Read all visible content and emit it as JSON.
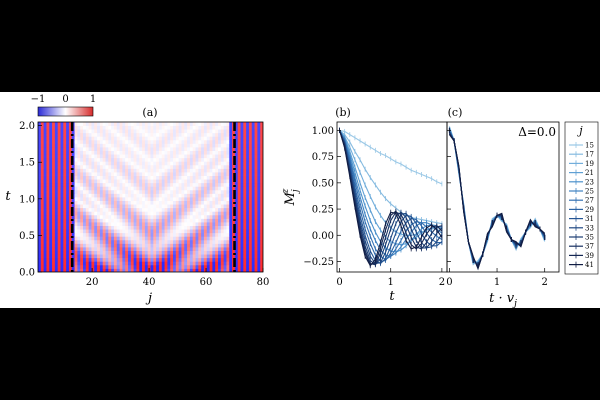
{
  "chart_data": [
    {
      "panel_label": "(a)",
      "type": "heatmap",
      "xlabel": "j",
      "ylabel": "t",
      "xlim": [
        1,
        80
      ],
      "ylim": [
        0,
        2.05
      ],
      "xticks": [
        "20",
        "40",
        "60",
        "80"
      ],
      "yticks": [
        "0.0",
        "0.5",
        "1.0",
        "1.5",
        "2.0"
      ],
      "colorbar": {
        "min": -1,
        "max": 1,
        "ticks": [
          "−1",
          "0",
          "1"
        ],
        "colors": [
          "#2b2bd6",
          "#ffffff",
          "#d62b2b"
        ]
      },
      "vertical_lines_j": [
        13,
        70
      ],
      "grid": false
    },
    {
      "panel_label": "(b)",
      "type": "line",
      "xlabel": "t",
      "ylabel": "M_j^z",
      "xlim": [
        -0.05,
        2.1
      ],
      "ylim": [
        -0.35,
        1.08
      ],
      "xticks": [
        "0",
        "1",
        "2"
      ],
      "yticks": [
        "−0.25",
        "0.00",
        "0.25",
        "0.50",
        "0.75",
        "1.00"
      ],
      "series_j": [
        15,
        17,
        19,
        21,
        23,
        25,
        27,
        29,
        31,
        33,
        35,
        37,
        39,
        41
      ],
      "x": [
        0,
        0.1,
        0.2,
        0.3,
        0.4,
        0.5,
        0.6,
        0.7,
        0.8,
        0.9,
        1.0,
        1.1,
        1.2,
        1.3,
        1.4,
        1.5,
        1.6,
        1.7,
        1.8,
        1.9,
        2.0
      ],
      "series": [
        {
          "values": [
            1.0,
            0.99,
            0.96,
            0.93,
            0.9,
            0.87,
            0.84,
            0.81,
            0.78,
            0.76,
            0.73,
            0.7,
            0.68,
            0.65,
            0.62,
            0.6,
            0.58,
            0.56,
            0.54,
            0.51,
            0.49
          ]
        },
        {
          "values": [
            1.0,
            0.96,
            0.89,
            0.8,
            0.72,
            0.63,
            0.55,
            0.48,
            0.41,
            0.35,
            0.3,
            0.26,
            0.22,
            0.19,
            0.17,
            0.16,
            0.15,
            0.14,
            0.13,
            0.12,
            0.11
          ]
        },
        {
          "values": [
            1.0,
            0.94,
            0.84,
            0.72,
            0.6,
            0.48,
            0.37,
            0.27,
            0.19,
            0.12,
            0.07,
            0.03,
            0.01,
            0.0,
            0.0,
            0.01,
            0.03,
            0.05,
            0.06,
            0.07,
            0.08
          ]
        },
        {
          "values": [
            1.0,
            0.93,
            0.8,
            0.65,
            0.5,
            0.36,
            0.24,
            0.13,
            0.05,
            -0.02,
            -0.06,
            -0.08,
            -0.09,
            -0.08,
            -0.05,
            -0.02,
            0.02,
            0.05,
            0.07,
            0.08,
            0.07
          ]
        },
        {
          "values": [
            1.0,
            0.92,
            0.77,
            0.6,
            0.43,
            0.28,
            0.14,
            0.03,
            -0.06,
            -0.12,
            -0.15,
            -0.16,
            -0.14,
            -0.1,
            -0.05,
            0.01,
            0.06,
            0.09,
            0.1,
            0.09,
            0.06
          ]
        },
        {
          "values": [
            1.0,
            0.91,
            0.74,
            0.55,
            0.37,
            0.2,
            0.06,
            -0.05,
            -0.14,
            -0.19,
            -0.2,
            -0.17,
            -0.11,
            -0.04,
            0.03,
            0.09,
            0.12,
            0.12,
            0.1,
            0.06,
            0.02
          ]
        },
        {
          "values": [
            1.0,
            0.9,
            0.72,
            0.51,
            0.31,
            0.13,
            -0.01,
            -0.13,
            -0.2,
            -0.23,
            -0.2,
            -0.13,
            -0.05,
            0.04,
            0.1,
            0.13,
            0.12,
            0.08,
            0.03,
            -0.01,
            -0.04
          ]
        },
        {
          "values": [
            1.0,
            0.89,
            0.69,
            0.46,
            0.25,
            0.06,
            -0.08,
            -0.19,
            -0.25,
            -0.24,
            -0.17,
            -0.07,
            0.04,
            0.12,
            0.16,
            0.15,
            0.09,
            0.02,
            -0.04,
            -0.07,
            -0.07
          ]
        },
        {
          "values": [
            1.0,
            0.88,
            0.66,
            0.42,
            0.19,
            0.0,
            -0.15,
            -0.24,
            -0.27,
            -0.22,
            -0.11,
            0.02,
            0.13,
            0.19,
            0.18,
            0.11,
            0.02,
            -0.06,
            -0.1,
            -0.1,
            -0.06
          ]
        },
        {
          "values": [
            1.0,
            0.87,
            0.64,
            0.38,
            0.14,
            -0.05,
            -0.2,
            -0.27,
            -0.26,
            -0.16,
            -0.03,
            0.11,
            0.2,
            0.21,
            0.14,
            0.03,
            -0.07,
            -0.12,
            -0.11,
            -0.06,
            0.01
          ]
        },
        {
          "values": [
            1.0,
            0.86,
            0.62,
            0.35,
            0.1,
            -0.1,
            -0.24,
            -0.28,
            -0.22,
            -0.09,
            0.06,
            0.18,
            0.22,
            0.17,
            0.06,
            -0.05,
            -0.12,
            -0.12,
            -0.06,
            0.02,
            0.07
          ]
        },
        {
          "values": [
            1.0,
            0.85,
            0.6,
            0.32,
            0.06,
            -0.14,
            -0.27,
            -0.28,
            -0.17,
            -0.02,
            0.14,
            0.22,
            0.2,
            0.1,
            -0.02,
            -0.11,
            -0.13,
            -0.07,
            0.02,
            0.08,
            0.09
          ]
        },
        {
          "values": [
            1.0,
            0.84,
            0.58,
            0.29,
            0.03,
            -0.17,
            -0.28,
            -0.26,
            -0.12,
            0.05,
            0.19,
            0.23,
            0.15,
            0.02,
            -0.09,
            -0.13,
            -0.08,
            0.01,
            0.08,
            0.09,
            0.04
          ]
        },
        {
          "values": [
            1.0,
            0.83,
            0.56,
            0.27,
            0.0,
            -0.2,
            -0.29,
            -0.23,
            -0.07,
            0.11,
            0.22,
            0.21,
            0.09,
            -0.05,
            -0.13,
            -0.11,
            -0.02,
            0.07,
            0.1,
            0.05,
            -0.02
          ]
        }
      ]
    },
    {
      "panel_label": "(c)",
      "type": "line",
      "xlabel": "t · v_j",
      "xlim": [
        -0.05,
        2.3
      ],
      "ylim": [
        -0.35,
        1.08
      ],
      "xticks": [
        "0",
        "1",
        "2"
      ],
      "annotation": "Δ=0.0",
      "x": [
        0,
        0.1,
        0.2,
        0.3,
        0.4,
        0.5,
        0.6,
        0.7,
        0.8,
        0.9,
        1.0,
        1.1,
        1.2,
        1.3,
        1.4,
        1.5,
        1.6,
        1.7,
        1.8,
        1.9,
        2.0
      ],
      "collapsed_values": [
        1.0,
        0.9,
        0.62,
        0.26,
        -0.06,
        -0.24,
        -0.28,
        -0.18,
        -0.02,
        0.12,
        0.19,
        0.17,
        0.07,
        -0.04,
        -0.1,
        -0.07,
        0.03,
        0.11,
        0.12,
        0.06,
        -0.02
      ]
    }
  ],
  "legend": {
    "title": "j",
    "labels": [
      "15",
      "17",
      "19",
      "21",
      "23",
      "25",
      "27",
      "29",
      "31",
      "33",
      "35",
      "37",
      "39",
      "41"
    ],
    "colors": [
      "#9ac8e6",
      "#86bbe0",
      "#72aedb",
      "#5fa0d4",
      "#4d92cc",
      "#3f82c1",
      "#3472b3",
      "#2b63a4",
      "#245594",
      "#1f4883",
      "#1b3c72",
      "#183162",
      "#152753",
      "#111d44"
    ]
  },
  "labels": {
    "a_panel": "(a)",
    "b_panel": "(b)",
    "c_panel": "(c)",
    "a_xlabel": "j",
    "a_ylabel": "t",
    "b_xlabel_main": "t",
    "b_ylabel_main": "M",
    "b_ylabel_sub": "j",
    "b_ylabel_sup": "z",
    "c_xlabel_main": "t · v",
    "c_xlabel_sub": "j",
    "delta": "Δ=0.0",
    "cb_t0": "−1",
    "cb_t1": "0",
    "cb_t2": "1",
    "legend_title": "j"
  }
}
